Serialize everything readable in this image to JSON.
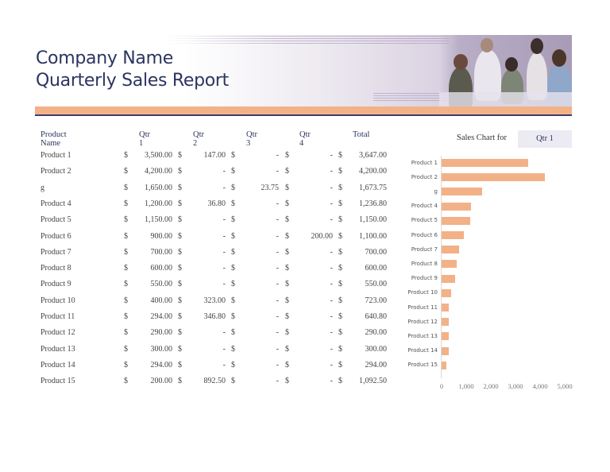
{
  "header": {
    "company_name": "Company Name",
    "report_title": "Quarterly Sales Report",
    "accent_color": "#f3b188",
    "title_color": "#2b3561",
    "rule_color": "#3b3f6b"
  },
  "table": {
    "columns": [
      "Product Name",
      "Qtr 1",
      "Qtr 2",
      "Qtr 3",
      "Qtr 4",
      "Total"
    ],
    "currency_symbol": "$",
    "rows": [
      {
        "name": "Product 1",
        "q1": "3,500.00",
        "q2": "147.00",
        "q3": "-",
        "q4": "-",
        "total": "3,647.00"
      },
      {
        "name": "Product 2",
        "q1": "4,200.00",
        "q2": "-",
        "q3": "-",
        "q4": "-",
        "total": "4,200.00"
      },
      {
        "name": "g",
        "q1": "1,650.00",
        "q2": "-",
        "q3": "23.75",
        "q4": "-",
        "total": "1,673.75"
      },
      {
        "name": "Product 4",
        "q1": "1,200.00",
        "q2": "36.80",
        "q3": "-",
        "q4": "-",
        "total": "1,236.80"
      },
      {
        "name": "Product 5",
        "q1": "1,150.00",
        "q2": "-",
        "q3": "-",
        "q4": "-",
        "total": "1,150.00"
      },
      {
        "name": "Product 6",
        "q1": "900.00",
        "q2": "-",
        "q3": "-",
        "q4": "200.00",
        "total": "1,100.00"
      },
      {
        "name": "Product 7",
        "q1": "700.00",
        "q2": "-",
        "q3": "-",
        "q4": "-",
        "total": "700.00"
      },
      {
        "name": "Product 8",
        "q1": "600.00",
        "q2": "-",
        "q3": "-",
        "q4": "-",
        "total": "600.00"
      },
      {
        "name": "Product 9",
        "q1": "550.00",
        "q2": "-",
        "q3": "-",
        "q4": "-",
        "total": "550.00"
      },
      {
        "name": "Product 10",
        "q1": "400.00",
        "q2": "323.00",
        "q3": "-",
        "q4": "-",
        "total": "723.00"
      },
      {
        "name": "Product 11",
        "q1": "294.00",
        "q2": "346.80",
        "q3": "-",
        "q4": "-",
        "total": "640.80"
      },
      {
        "name": "Product 12",
        "q1": "290.00",
        "q2": "-",
        "q3": "-",
        "q4": "-",
        "total": "290.00"
      },
      {
        "name": "Product 13",
        "q1": "300.00",
        "q2": "-",
        "q3": "-",
        "q4": "-",
        "total": "300.00"
      },
      {
        "name": "Product 14",
        "q1": "294.00",
        "q2": "-",
        "q3": "-",
        "q4": "-",
        "total": "294.00"
      },
      {
        "name": "Product 15",
        "q1": "200.00",
        "q2": "892.50",
        "q3": "-",
        "q4": "-",
        "total": "1,092.50"
      }
    ]
  },
  "chart": {
    "title_label": "Sales Chart for",
    "selected_quarter": "Qtr 1"
  },
  "chart_data": {
    "type": "bar",
    "orientation": "horizontal",
    "title": "Sales Chart for Qtr 1",
    "categories": [
      "Product 1",
      "Product 2",
      "g",
      "Product 4",
      "Product 5",
      "Product 6",
      "Product 7",
      "Product 8",
      "Product 9",
      "Product 10",
      "Product 11",
      "Product 12",
      "Product 13",
      "Product 14",
      "Product 15"
    ],
    "values": [
      3500,
      4200,
      1650,
      1200,
      1150,
      900,
      700,
      600,
      550,
      400,
      294,
      290,
      300,
      294,
      200
    ],
    "xlim": [
      0,
      5000
    ],
    "x_ticks": [
      "0",
      "1,000",
      "2,000",
      "3,000",
      "4,000",
      "5,000"
    ],
    "bar_color": "#f3b188",
    "grid": false,
    "legend": "none"
  }
}
